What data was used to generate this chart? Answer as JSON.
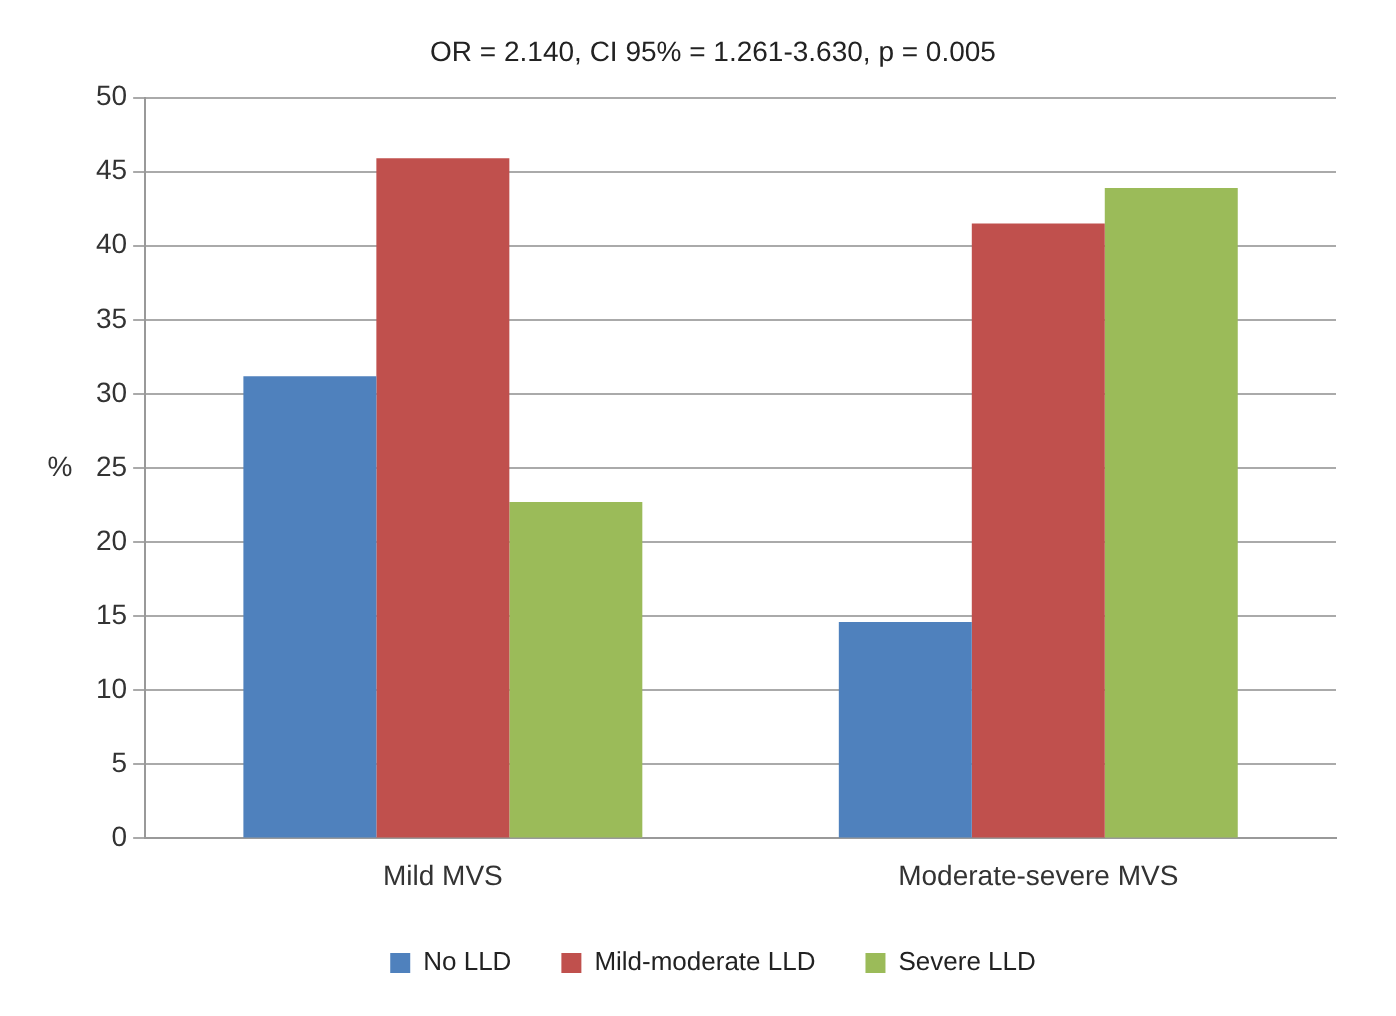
{
  "chart_data": {
    "type": "bar",
    "title": "OR = 2.140, CI 95% = 1.261-3.630, p = 0.005",
    "ylabel": "%",
    "categories": [
      "Mild MVS",
      "Moderate-severe MVS"
    ],
    "series": [
      {
        "name": "No LLD",
        "color": "#4f81bd",
        "values": [
          31.2,
          14.6
        ]
      },
      {
        "name": "Mild-moderate LLD",
        "color": "#c0504d",
        "values": [
          45.9,
          41.5
        ]
      },
      {
        "name": "Severe LLD",
        "color": "#9bbb59",
        "values": [
          22.7,
          43.9
        ]
      }
    ],
    "ylim": [
      0,
      50
    ],
    "yticks": [
      0,
      5,
      10,
      15,
      20,
      25,
      30,
      35,
      40,
      45,
      50
    ],
    "grid": "y",
    "legend": "bottom"
  }
}
